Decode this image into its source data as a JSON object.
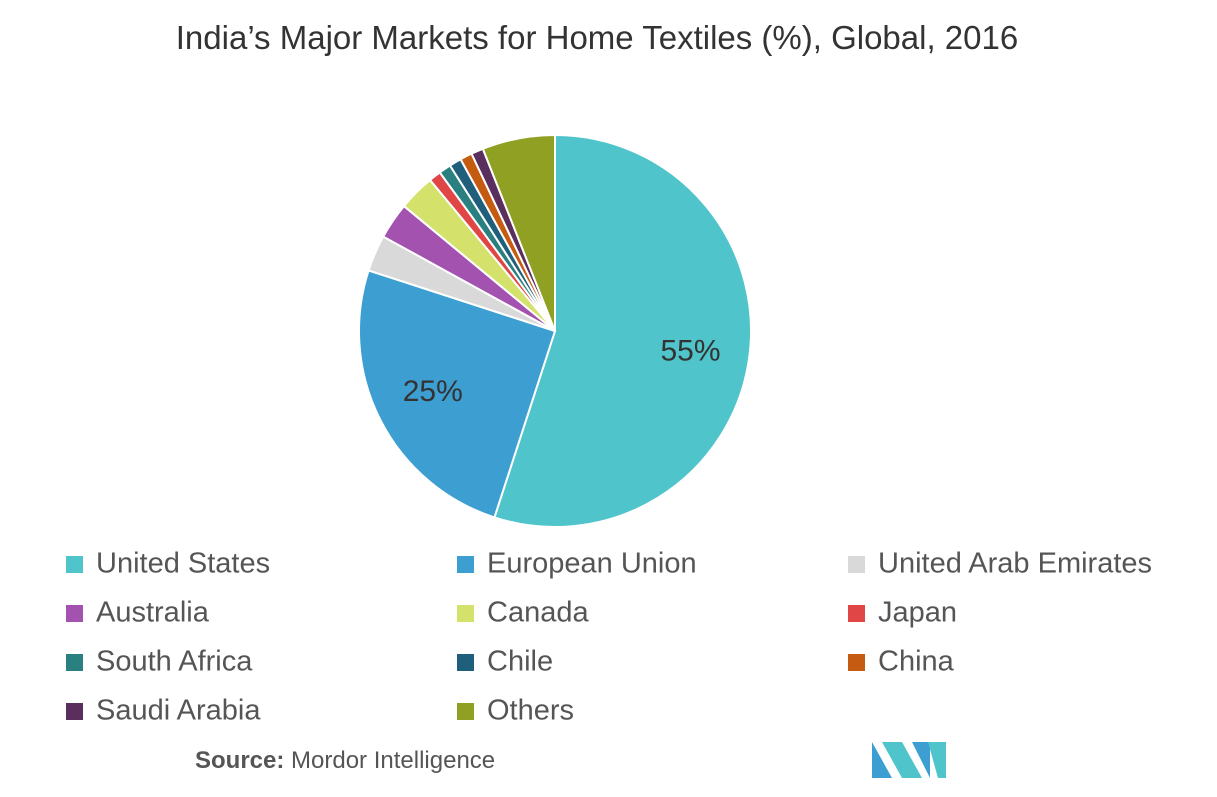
{
  "chart_data": {
    "type": "pie",
    "title": "India’s Major Markets for Home Textiles (%), Global, 2016",
    "categories": [
      "United States",
      "European Union",
      "United Arab Emirates",
      "Australia",
      "Canada",
      "Japan",
      "South Africa",
      "Chile",
      "China",
      "Saudi Arabia",
      "Others"
    ],
    "values": [
      55,
      25,
      3,
      3,
      3,
      1,
      1,
      1,
      1,
      1,
      6
    ],
    "value_labels": [
      "55%",
      "25%",
      null,
      null,
      null,
      null,
      null,
      null,
      null,
      null,
      null
    ],
    "colors": [
      "#4fc4ca",
      "#3d9ed1",
      "#d9d9d9",
      "#a352b0",
      "#d4e26c",
      "#e04646",
      "#2a8080",
      "#1f5f7c",
      "#c55a11",
      "#5a2f5e",
      "#8fa023"
    ],
    "source": {
      "label": "Source:",
      "text": "Mordor Intelligence"
    }
  }
}
